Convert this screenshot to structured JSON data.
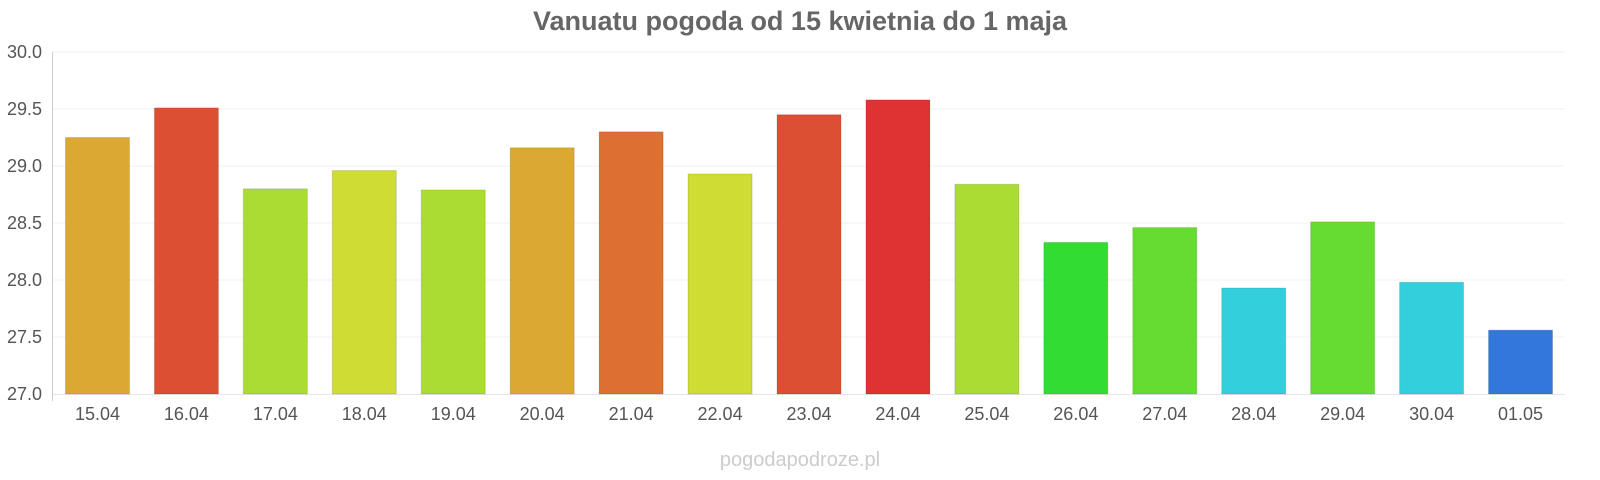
{
  "title": "Vanuatu pogoda od 15 kwietnia do 1 maja",
  "watermark": "pogodapodroze.pl",
  "chart_data": {
    "type": "bar",
    "title": "Vanuatu pogoda od 15 kwietnia do 1 maja",
    "xlabel": "",
    "ylabel": "",
    "ylim": [
      27.0,
      30.0
    ],
    "yticks": [
      "27.0",
      "27.5",
      "28.0",
      "28.5",
      "29.0",
      "29.5",
      "30.0"
    ],
    "grid": true,
    "legend": "none",
    "categories": [
      "15.04",
      "16.04",
      "17.04",
      "18.04",
      "19.04",
      "20.04",
      "21.04",
      "22.04",
      "23.04",
      "24.04",
      "25.04",
      "26.04",
      "27.04",
      "28.04",
      "29.04",
      "30.04",
      "01.05"
    ],
    "values": [
      29.25,
      29.51,
      28.8,
      28.96,
      28.79,
      29.16,
      29.3,
      28.93,
      29.45,
      29.58,
      28.84,
      28.33,
      28.46,
      27.93,
      28.51,
      27.98,
      27.56
    ],
    "colors": [
      "#dba933",
      "#dd4f33",
      "#aadc33",
      "#cfdc33",
      "#aadc33",
      "#dba933",
      "#dd6f33",
      "#cfdc33",
      "#dd4f33",
      "#dd3333",
      "#aadc33",
      "#33dc33",
      "#66dc33",
      "#33cfdc",
      "#66dc33",
      "#33cfdc",
      "#3377dc"
    ]
  }
}
